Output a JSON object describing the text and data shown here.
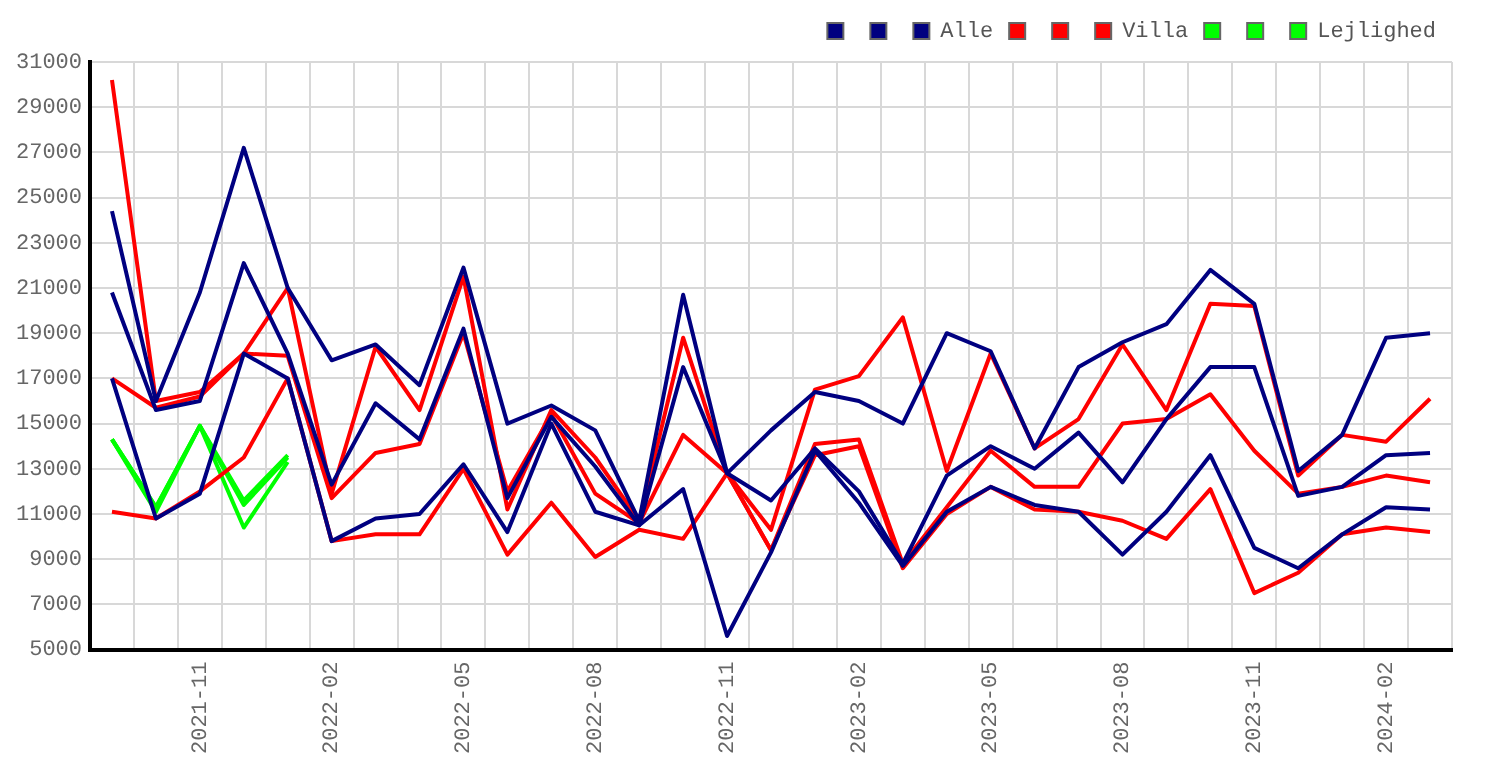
{
  "chart_data": {
    "type": "line",
    "categories": [
      null,
      null,
      "2021-11",
      null,
      null,
      "2022-02",
      null,
      null,
      "2022-05",
      null,
      null,
      "2022-08",
      null,
      null,
      "2022-11",
      null,
      null,
      "2023-02",
      null,
      null,
      "2023-05",
      null,
      null,
      "2023-08",
      null,
      null,
      "2023-11",
      null,
      null,
      "2024-02",
      null
    ],
    "series": [
      {
        "color": "#000080",
        "values": [
          24400,
          16000,
          20800,
          27200,
          21000,
          17800,
          18500,
          16700,
          21900,
          15000,
          15800,
          14700,
          10700,
          20700,
          12800,
          14700,
          16400,
          16000,
          15000,
          19000,
          18200,
          13900,
          17500,
          18600,
          19400,
          21800,
          20300,
          12900,
          14500,
          18800,
          19000
        ]
      },
      {
        "color": "#000080",
        "values": [
          20800,
          15600,
          16000,
          22100,
          18100,
          12300,
          15900,
          14300,
          19200,
          11700,
          15300,
          13100,
          10500,
          17500,
          12800,
          11600,
          13900,
          12000,
          8800,
          12700,
          14000,
          13000,
          14600,
          12400,
          15200,
          17500,
          17500,
          11800,
          12200,
          13600,
          13700
        ]
      },
      {
        "name": "Alle",
        "color": "#000080",
        "values": [
          17000,
          10800,
          11900,
          18100,
          17000,
          9800,
          10800,
          11000,
          13200,
          10200,
          15000,
          11100,
          10500,
          12100,
          5600,
          9300,
          13800,
          11500,
          8700,
          11100,
          12200,
          11400,
          11100,
          9200,
          11100,
          13600,
          9500,
          8600,
          10100,
          11300,
          11200
        ]
      },
      {
        "color": "#ff0000",
        "values": [
          30200,
          16000,
          16400,
          18100,
          21000,
          11900,
          18400,
          15600,
          21500,
          11200,
          15600,
          13500,
          10700,
          18800,
          12800,
          10300,
          16500,
          17100,
          19700,
          12900,
          18100,
          13900,
          15200,
          18500,
          15600,
          20300,
          20200,
          12700,
          14500,
          14200,
          16100
        ]
      },
      {
        "color": "#ff0000",
        "values": [
          17000,
          15700,
          16200,
          18100,
          18000,
          11700,
          13700,
          14100,
          19000,
          12000,
          15400,
          11900,
          10600,
          14500,
          12800,
          9400,
          14100,
          14300,
          8800,
          11300,
          13800,
          12200,
          12200,
          15000,
          15200,
          16300,
          13800,
          11900,
          12200,
          12700,
          12400
        ]
      },
      {
        "name": "Villa",
        "color": "#ff0000",
        "values": [
          11100,
          10800,
          12000,
          13500,
          17000,
          9800,
          10100,
          10100,
          13000,
          9200,
          11500,
          9100,
          10300,
          9900,
          12800,
          9400,
          13600,
          14000,
          8600,
          11000,
          12200,
          11200,
          11100,
          10700,
          9900,
          12100,
          7500,
          8400,
          10100,
          10400,
          10200
        ]
      },
      {
        "color": "#00ff00",
        "values": [
          14300,
          11300,
          14900,
          11400,
          13500,
          null,
          null,
          null,
          null,
          null,
          null,
          null,
          null,
          null,
          null,
          null,
          null,
          null,
          null,
          null,
          null,
          null,
          null,
          null,
          null,
          null,
          null,
          null,
          null,
          null,
          null
        ]
      },
      {
        "color": "#00ff00",
        "values": [
          14300,
          11300,
          14900,
          10400,
          13300,
          null,
          null,
          null,
          null,
          null,
          null,
          null,
          null,
          null,
          null,
          null,
          null,
          null,
          null,
          null,
          null,
          null,
          null,
          null,
          null,
          null,
          null,
          null,
          null,
          null,
          null
        ]
      },
      {
        "name": "Lejlighed",
        "color": "#00ff00",
        "values": [
          14300,
          11100,
          14900,
          11600,
          13600,
          null,
          null,
          null,
          null,
          null,
          null,
          null,
          null,
          null,
          null,
          null,
          null,
          null,
          null,
          null,
          null,
          null,
          null,
          null,
          null,
          null,
          null,
          null,
          null,
          null,
          null
        ]
      }
    ],
    "ylim": [
      5000,
      31000
    ],
    "yticks": [
      5000,
      7000,
      9000,
      11000,
      13000,
      15000,
      17000,
      19000,
      21000,
      23000,
      25000,
      27000,
      29000,
      31000
    ],
    "grid": true,
    "legend": "top right",
    "marker": "none",
    "line_style": "solid"
  }
}
